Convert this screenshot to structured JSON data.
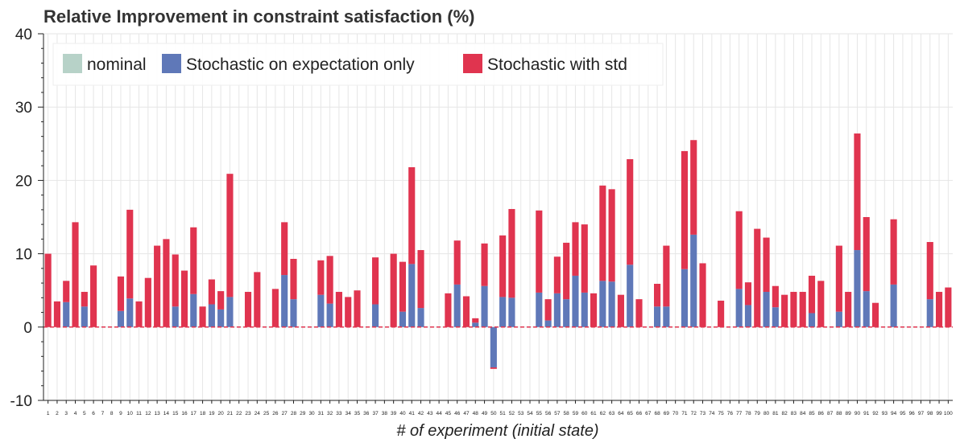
{
  "chart_data": {
    "type": "bar",
    "stacked": true,
    "title": "Relative Improvement in constraint satisfaction (%)",
    "xlabel": "# of experiment (initial state)",
    "ylabel": "",
    "ylim": [
      -10,
      40
    ],
    "yticks": [
      -10,
      0,
      10,
      20,
      30,
      40
    ],
    "grid": true,
    "legend_position": "top-left",
    "colors": {
      "nominal": "#b7d2c8",
      "expectation": "#5f78b8",
      "std": "#e0344f",
      "zero_line": "#e0344f"
    },
    "categories": [
      "1",
      "2",
      "3",
      "4",
      "5",
      "6",
      "7",
      "8",
      "9",
      "10",
      "11",
      "12",
      "13",
      "14",
      "15",
      "16",
      "17",
      "18",
      "19",
      "20",
      "21",
      "22",
      "23",
      "24",
      "25",
      "26",
      "27",
      "28",
      "29",
      "30",
      "31",
      "32",
      "33",
      "34",
      "35",
      "36",
      "37",
      "38",
      "39",
      "40",
      "41",
      "42",
      "43",
      "44",
      "45",
      "46",
      "47",
      "48",
      "49",
      "50",
      "51",
      "52",
      "53",
      "54",
      "55",
      "56",
      "57",
      "58",
      "59",
      "60",
      "61",
      "62",
      "63",
      "64",
      "65",
      "66",
      "67",
      "68",
      "69",
      "70",
      "71",
      "72",
      "73",
      "74",
      "75",
      "76",
      "77",
      "78",
      "79",
      "80",
      "81",
      "82",
      "83",
      "84",
      "85",
      "86",
      "87",
      "88",
      "89",
      "90",
      "91",
      "92",
      "93",
      "94",
      "95",
      "96",
      "97",
      "98",
      "99",
      "100"
    ],
    "series": [
      {
        "name": "nominal",
        "values": [
          0,
          0,
          0,
          0,
          0,
          0,
          0,
          0,
          0,
          0,
          0,
          0,
          0,
          0,
          0,
          0,
          0,
          0,
          0,
          0,
          0,
          0,
          0,
          0,
          0,
          0,
          0,
          0,
          0,
          0,
          0,
          0,
          0,
          0,
          0,
          0,
          0,
          0,
          0,
          0,
          0,
          0,
          0,
          0,
          0,
          0,
          0,
          0,
          0,
          0,
          0,
          0,
          0,
          0,
          0,
          0,
          0,
          0,
          0,
          0,
          0,
          0,
          0,
          0,
          0,
          0,
          0,
          0,
          0,
          0,
          0,
          0,
          0,
          0,
          0,
          0,
          0,
          0,
          0,
          0,
          0,
          0,
          0,
          0,
          0,
          0,
          0,
          0,
          0,
          0,
          0,
          0,
          0,
          0,
          0,
          0,
          0,
          0,
          0,
          0
        ]
      },
      {
        "name": "Stochastic on expectation only",
        "values": [
          0,
          0,
          3.4,
          0,
          2.8,
          0,
          0,
          0,
          2.2,
          3.9,
          0,
          0,
          0,
          0,
          2.8,
          0,
          4.5,
          0,
          3.1,
          2.4,
          4.1,
          0,
          0,
          0,
          0,
          0,
          7.1,
          3.8,
          0,
          0,
          4.4,
          3.2,
          0,
          0,
          0,
          0,
          3.1,
          0,
          0,
          2.1,
          8.6,
          2.6,
          0,
          0,
          0,
          5.8,
          0,
          0.6,
          5.6,
          -5.5,
          4.1,
          4.0,
          0,
          0,
          4.7,
          0.9,
          4.6,
          3.8,
          7.0,
          4.7,
          0,
          6.3,
          6.2,
          0,
          8.5,
          0,
          0,
          2.8,
          2.8,
          0,
          7.9,
          12.6,
          0,
          0,
          0,
          0,
          5.2,
          3.0,
          0,
          4.8,
          2.7,
          0,
          0,
          0,
          1.9,
          0,
          0,
          2.1,
          0,
          10.5,
          4.9,
          0,
          0,
          5.8,
          0,
          0,
          0,
          3.8,
          0,
          0
        ]
      },
      {
        "name": "Stochastic with std",
        "values": [
          10.0,
          3.5,
          2.9,
          14.3,
          2.0,
          8.4,
          0,
          0,
          4.7,
          12.1,
          3.5,
          6.7,
          11.1,
          12.0,
          7.1,
          7.7,
          9.1,
          2.8,
          3.4,
          2.5,
          16.8,
          0,
          4.8,
          7.5,
          0,
          5.2,
          7.2,
          5.5,
          0,
          0,
          4.7,
          6.5,
          4.8,
          4.1,
          5.0,
          0,
          6.4,
          0,
          10.0,
          6.8,
          13.2,
          7.9,
          0,
          0,
          4.6,
          6.0,
          4.2,
          0.6,
          5.8,
          -0.2,
          8.4,
          12.1,
          0,
          0,
          11.2,
          2.9,
          5.0,
          7.7,
          7.3,
          9.3,
          4.6,
          13.0,
          12.6,
          4.4,
          14.4,
          3.8,
          0,
          3.1,
          8.3,
          0,
          16.1,
          12.9,
          8.7,
          0,
          3.6,
          0,
          10.6,
          3.1,
          13.4,
          7.4,
          2.9,
          4.4,
          4.8,
          4.8,
          5.1,
          6.3,
          0,
          9.0,
          4.8,
          15.9,
          10.1,
          3.3,
          0,
          8.9,
          0,
          0,
          0,
          7.8,
          4.8,
          5.4
        ]
      }
    ]
  }
}
